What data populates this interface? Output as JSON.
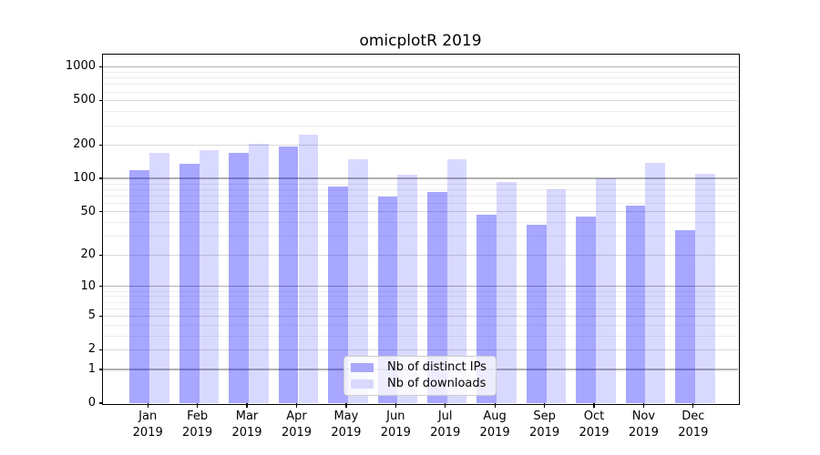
{
  "title": "omicplotR 2019",
  "colors": {
    "series_base": "#0000ff",
    "dark_bar_solid": "#a8a8fa",
    "light_bar_solid": "#d9d9fc",
    "grid_major": "#b0b0b0",
    "grid_mid": "#d9d9d9",
    "grid_minor": "#ededed",
    "spine": "#000000",
    "legend_border": "#cccccc"
  },
  "chart_data": {
    "type": "bar",
    "title": "omicplotR 2019",
    "categories": [
      "Jan 2019",
      "Feb 2019",
      "Mar 2019",
      "Apr 2019",
      "May 2019",
      "Jun 2019",
      "Jul 2019",
      "Aug 2019",
      "Sep 2019",
      "Oct 2019",
      "Nov 2019",
      "Dec 2019"
    ],
    "series": [
      {
        "name": "Nb of distinct IPs",
        "color": "#0000ff",
        "alpha": 0.345,
        "solid_color": "#a8a8fa",
        "values": [
          118,
          135,
          170,
          195,
          84,
          68,
          75,
          47,
          38,
          45,
          57,
          34
        ]
      },
      {
        "name": "Nb of downloads",
        "color": "#0000ff",
        "alpha": 0.15,
        "solid_color": "#d9d9fc",
        "values": [
          171,
          181,
          205,
          245,
          150,
          107,
          150,
          92,
          80,
          100,
          139,
          110
        ]
      }
    ],
    "xlabel": "",
    "ylabel": "",
    "yscale": "log1p",
    "ylim": [
      0,
      1281
    ],
    "y_ticks": [
      0,
      1,
      2,
      5,
      10,
      20,
      50,
      100,
      200,
      500,
      1000
    ],
    "y_major_ticks": [
      1,
      10,
      100,
      1000
    ],
    "y_minor_ticks": [
      3,
      4,
      6,
      7,
      8,
      9,
      30,
      40,
      60,
      70,
      80,
      90,
      300,
      400,
      600,
      700,
      800,
      900
    ],
    "grid": true,
    "legend_position": "lower center"
  }
}
